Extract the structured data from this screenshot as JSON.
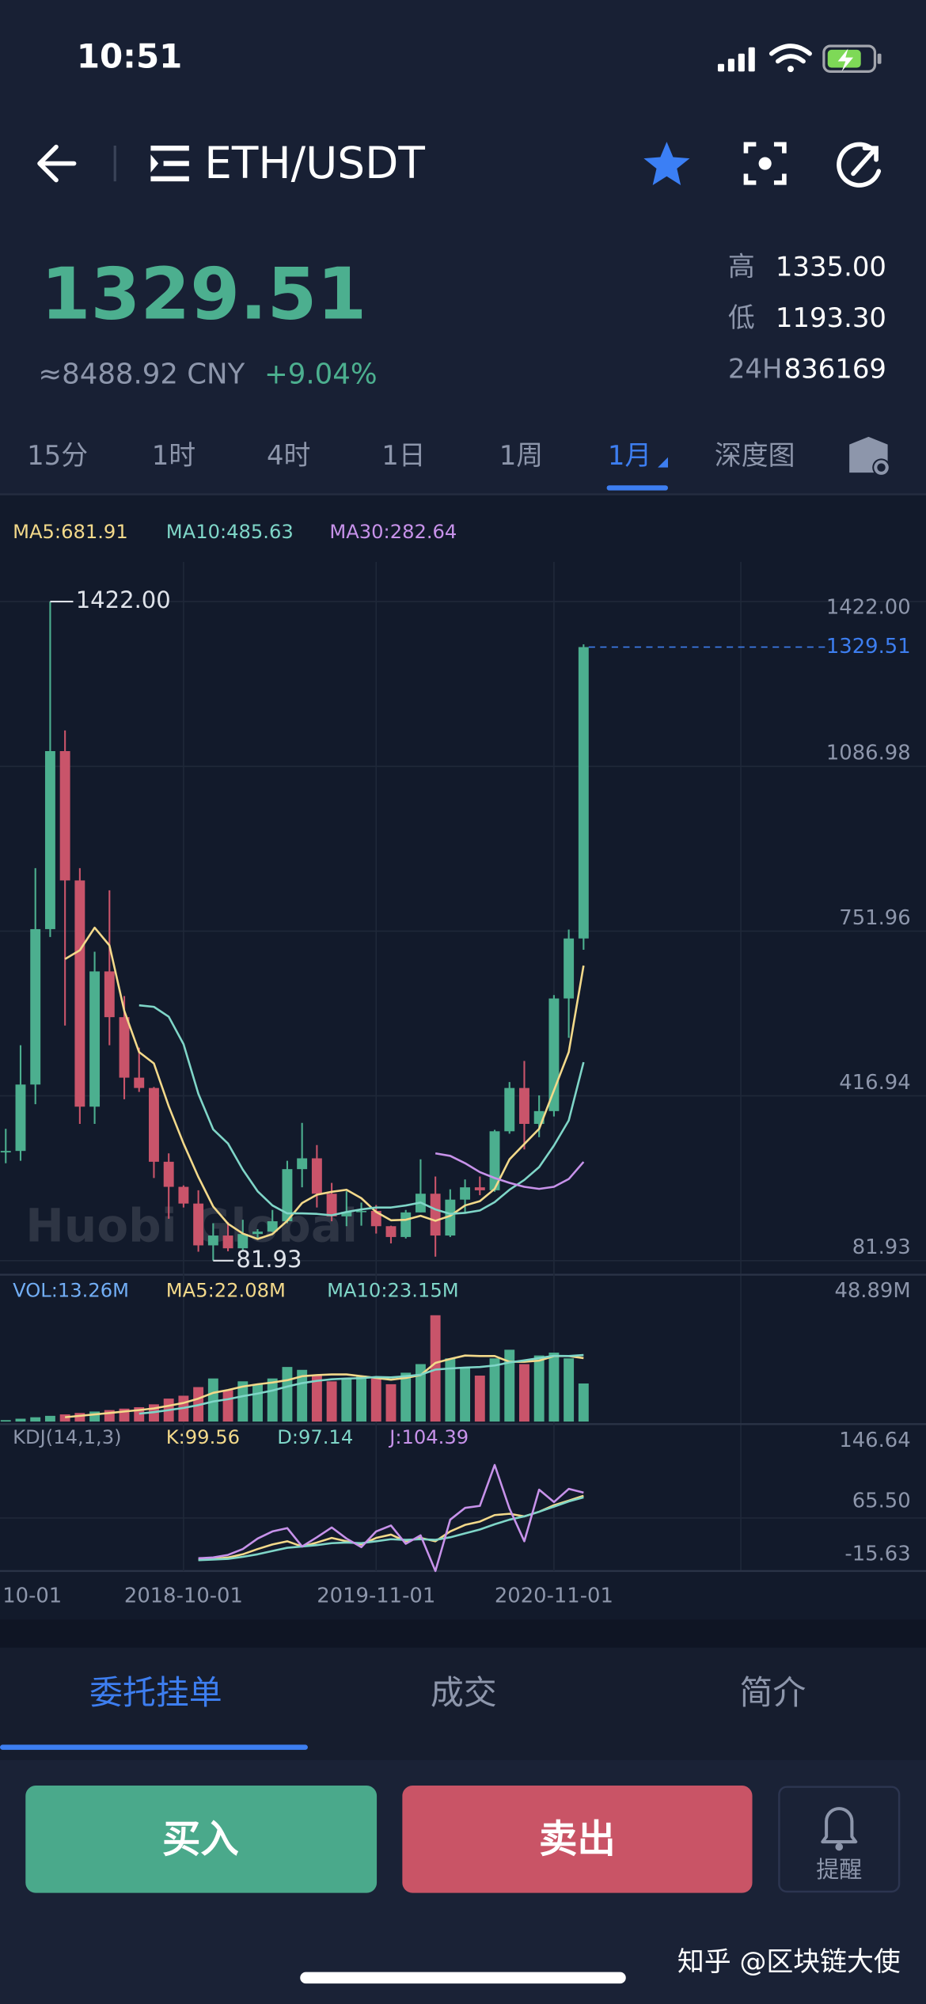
{
  "status_bar": {
    "time": "10:51"
  },
  "header": {
    "pair": "ETH/USDT"
  },
  "ticker": {
    "price": "1329.51",
    "cny": "≈8488.92 CNY",
    "change": "+9.04%",
    "stats": [
      {
        "label": "高",
        "value": "1335.00"
      },
      {
        "label": "低",
        "value": "1193.30"
      },
      {
        "label": "24H",
        "value": "836169"
      }
    ]
  },
  "tabs": [
    "15分",
    "1时",
    "4时",
    "1日",
    "1周",
    "1月",
    "深度图"
  ],
  "active_tab": 5,
  "chart": {
    "type": "candlestick",
    "categories": [
      "10-01",
      null,
      null,
      null,
      null,
      null,
      null,
      null,
      null,
      null,
      null,
      null,
      "2018-10-01",
      null,
      null,
      null,
      null,
      null,
      null,
      null,
      null,
      null,
      null,
      null,
      null,
      "2019-11-01",
      null,
      null,
      null,
      null,
      null,
      null,
      null,
      null,
      null,
      null,
      null,
      "2020-11-01",
      null,
      null
    ],
    "open": [
      302,
      305,
      440,
      756,
      1118,
      855,
      395,
      670,
      577,
      454,
      433,
      283,
      232,
      198,
      113,
      133,
      107,
      136,
      141,
      162,
      268,
      290,
      218,
      172,
      181,
      183,
      152,
      130,
      180,
      218,
      133,
      206,
      231,
      225,
      345,
      433,
      360,
      386,
      615,
      737
    ],
    "high": [
      350,
      520,
      880,
      1422,
      1160,
      880,
      710,
      835,
      620,
      515,
      435,
      300,
      235,
      225,
      158,
      160,
      165,
      146,
      185,
      285,
      362,
      317,
      240,
      223,
      200,
      195,
      153,
      185,
      288,
      253,
      227,
      247,
      253,
      348,
      445,
      488,
      418,
      622,
      755,
      1335
    ],
    "low": [
      280,
      285,
      400,
      740,
      560,
      360,
      360,
      520,
      410,
      425,
      250,
      167,
      190,
      100,
      81.93,
      101,
      102,
      126,
      140,
      158,
      231,
      190,
      162,
      152,
      153,
      137,
      117,
      127,
      180,
      90,
      130,
      180,
      215,
      222,
      340,
      308,
      333,
      375,
      535,
      714
    ],
    "close": [
      305,
      440,
      756,
      1118,
      855,
      395,
      670,
      577,
      454,
      433,
      283,
      232,
      198,
      113,
      133,
      107,
      136,
      141,
      162,
      268,
      290,
      218,
      172,
      181,
      183,
      152,
      130,
      180,
      218,
      133,
      206,
      231,
      225,
      345,
      433,
      360,
      386,
      615,
      737,
      1329.51
    ],
    "up_color": "#4caf8f",
    "down_color": "#c9546a",
    "ylim": [
      81.93,
      1422
    ],
    "yticks": [
      {
        "value": 1422,
        "label": "1422.00"
      },
      1086.98,
      751.96,
      416.94,
      81.93
    ],
    "last_price": 1329.51,
    "high_marker": {
      "value": 1422,
      "label": "1422.00"
    },
    "low_marker": 81.93,
    "watermark": "Huobi Global",
    "series": [
      {
        "name": "MA5:681.91",
        "color": "#f3d98a",
        "values": [
          null,
          null,
          null,
          null,
          695,
          713,
          759,
          723,
          590,
          506,
          483,
          396,
          320,
          252,
          192,
          157,
          137,
          126,
          136,
          163,
          199,
          216,
          222,
          226,
          209,
          181,
          164,
          165,
          173,
          163,
          173,
          194,
          203,
          228,
          288,
          319,
          350,
          428,
          506,
          681.91
        ]
      },
      {
        "name": "MA10:485.63",
        "color": "#7fd6c8",
        "values": [
          null,
          null,
          null,
          null,
          null,
          null,
          null,
          null,
          null,
          601,
          598,
          578,
          522,
          421,
          349,
          320,
          267,
          223,
          194,
          178,
          178,
          177,
          174,
          181,
          186,
          190,
          190,
          194,
          200,
          186,
          177,
          179,
          184,
          201,
          226,
          246,
          272,
          316,
          367,
          485.63
        ]
      },
      {
        "name": "MA30:282.64",
        "color": "#c792ea",
        "values": [
          null,
          null,
          null,
          null,
          null,
          null,
          null,
          null,
          null,
          null,
          null,
          null,
          null,
          null,
          null,
          null,
          null,
          null,
          null,
          null,
          null,
          null,
          null,
          null,
          null,
          null,
          null,
          null,
          null,
          300,
          295,
          280,
          262,
          250,
          240,
          232,
          228,
          232,
          248,
          282.64
        ]
      }
    ],
    "volume": {
      "legend": "VOL:13.26M",
      "legend_color": "#72aef5",
      "values": [
        0.5,
        1,
        1.5,
        2,
        2.5,
        3,
        3.5,
        4,
        4.5,
        5,
        6,
        8,
        9,
        12,
        15,
        11,
        14,
        13,
        15,
        19,
        18,
        16,
        14,
        15,
        16,
        15,
        13,
        17,
        20,
        37,
        22,
        19,
        16,
        22,
        25,
        20,
        23,
        24,
        22,
        13.26
      ],
      "ylim": [
        0,
        48.89
      ],
      "yticks": [
        {
          "value": 48.89,
          "label": "48.89M"
        }
      ],
      "series": [
        {
          "name": "MA5:22.08M",
          "color": "#f3d98a",
          "values": [
            null,
            null,
            null,
            null,
            1.5,
            2,
            2.5,
            3,
            3.5,
            4,
            4.6,
            5.5,
            6.5,
            8,
            10,
            11,
            12.2,
            13,
            13.6,
            14.4,
            15.8,
            16.2,
            16.4,
            16.4,
            15.8,
            15.2,
            14.6,
            15.2,
            16.2,
            20.4,
            21.8,
            23,
            22.8,
            22.8,
            20.8,
            20.8,
            21.2,
            22.8,
            22.8,
            22.08
          ]
        },
        {
          "name": "MA10:23.15M",
          "color": "#7fd6c8",
          "values": [
            null,
            null,
            null,
            null,
            null,
            null,
            null,
            null,
            null,
            2.75,
            3.3,
            4,
            4.75,
            5.75,
            7,
            7.8,
            8.85,
            9.75,
            10.8,
            12.2,
            13.4,
            14.2,
            14.7,
            15,
            15.1,
            15.5,
            15.4,
            15.8,
            16.3,
            18.1,
            18.5,
            18.8,
            19,
            19.5,
            20.6,
            21.3,
            22.1,
            22.9,
            22.8,
            23.15
          ]
        }
      ]
    },
    "kdj": {
      "legend": "KDJ(14,1,3)",
      "ylim": [
        -15.63,
        146.64
      ],
      "yticks": [
        146.64,
        {
          "value": 65.5,
          "label": "65.50"
        },
        -15.63
      ],
      "series": [
        {
          "name": "K:99.56",
          "color": "#f3d98a",
          "values": [
            null,
            null,
            null,
            null,
            null,
            null,
            null,
            null,
            null,
            null,
            null,
            null,
            null,
            2,
            3,
            5,
            10,
            18,
            25,
            30,
            22,
            28,
            35,
            30,
            25,
            35,
            40,
            30,
            35,
            30,
            45,
            55,
            60,
            70,
            72,
            68,
            75,
            85,
            92,
            99.56
          ]
        },
        {
          "name": "D:97.14",
          "color": "#7fd6c8",
          "values": [
            null,
            null,
            null,
            null,
            null,
            null,
            null,
            null,
            null,
            null,
            null,
            null,
            null,
            1,
            2,
            3,
            6,
            10,
            15,
            20,
            22,
            24,
            27,
            28,
            27,
            30,
            33,
            32,
            33,
            32,
            36,
            42,
            48,
            56,
            63,
            68,
            75,
            83,
            91,
            97.14
          ]
        },
        {
          "name": "J:104.39",
          "color": "#c792ea",
          "values": [
            null,
            null,
            null,
            null,
            null,
            null,
            null,
            null,
            null,
            null,
            null,
            null,
            null,
            4,
            5,
            9,
            18,
            34,
            45,
            50,
            22,
            36,
            51,
            34,
            21,
            45,
            54,
            26,
            39,
            -15.63,
            63,
            81,
            84,
            146.64,
            80,
            30,
            109,
            90,
            110,
            104.39
          ]
        }
      ]
    }
  },
  "bottom_tabs": [
    "委托挂单",
    "成交",
    "简介"
  ],
  "actions": {
    "buy": "买入",
    "sell": "卖出",
    "alert": "提醒"
  },
  "footer_watermark": "知乎 @区块链大使"
}
